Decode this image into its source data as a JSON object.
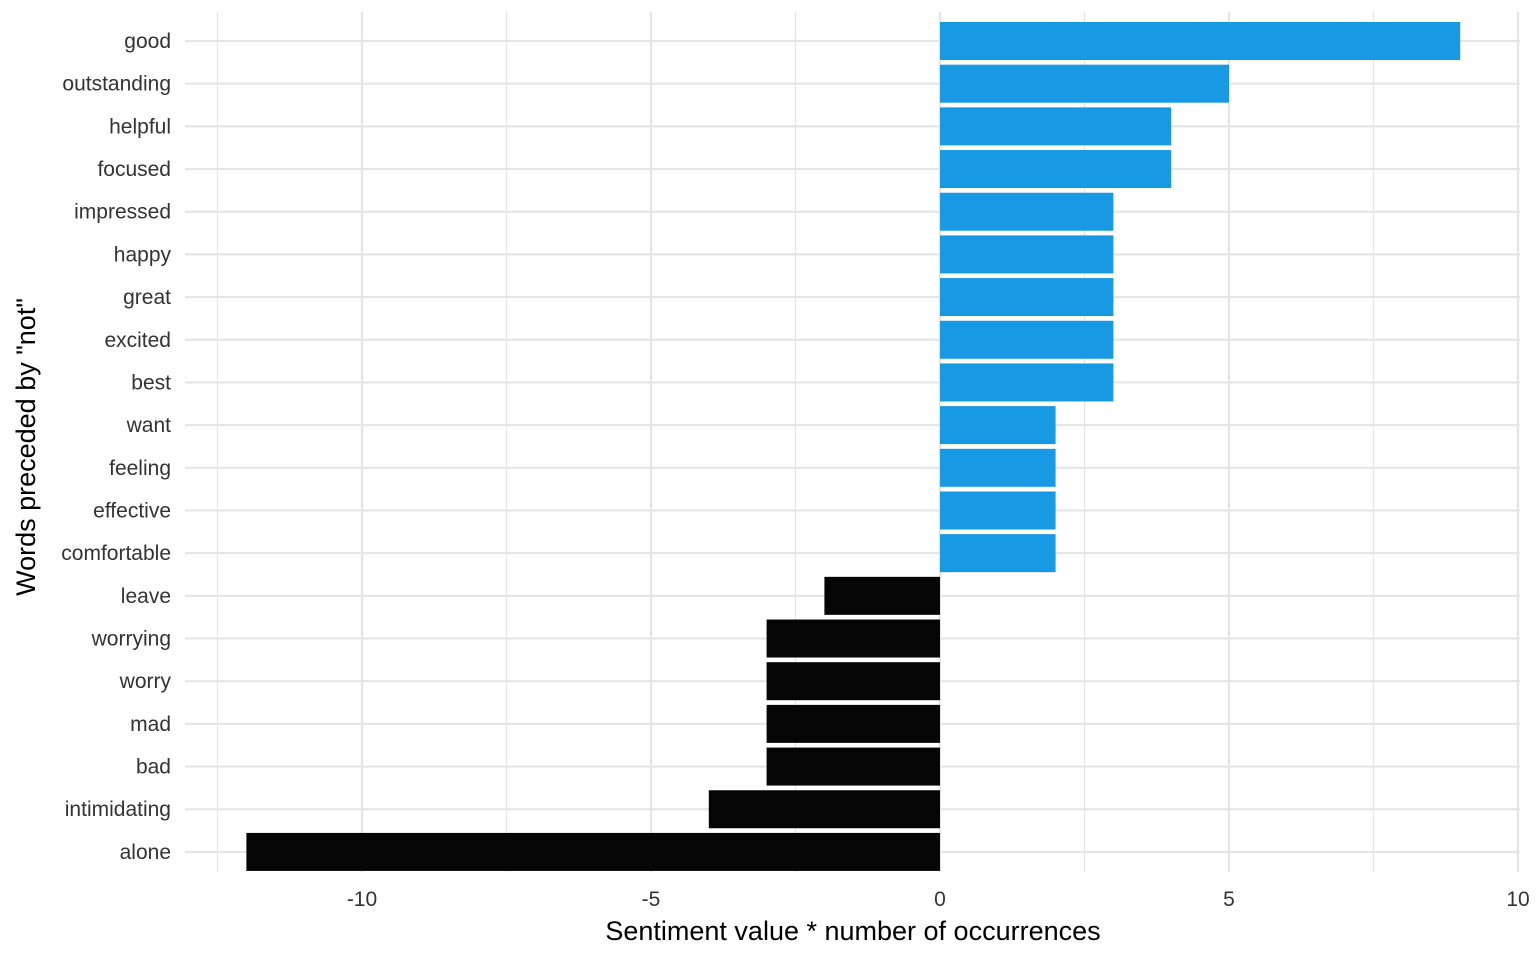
{
  "chart_data": {
    "type": "bar",
    "orientation": "horizontal",
    "xlabel": "Sentiment value * number of occurrences",
    "ylabel": "Words preceded by \"not\"",
    "xlim": [
      -12.5,
      10
    ],
    "x_ticks": [
      -10,
      -5,
      0,
      5,
      10
    ],
    "grid": true,
    "colors": {
      "positive": "#1799e4",
      "negative": "#050505",
      "grid": "#e6e6e6",
      "text": "#333333",
      "title_text": "#000000"
    },
    "categories": [
      "good",
      "outstanding",
      "helpful",
      "focused",
      "impressed",
      "happy",
      "great",
      "excited",
      "best",
      "want",
      "feeling",
      "effective",
      "comfortable",
      "leave",
      "worrying",
      "worry",
      "mad",
      "bad",
      "intimidating",
      "alone"
    ],
    "values": [
      9,
      5,
      4,
      4,
      3,
      3,
      3,
      3,
      3,
      2,
      2,
      2,
      2,
      -2,
      -3,
      -3,
      -3,
      -3,
      -4,
      -12
    ]
  }
}
